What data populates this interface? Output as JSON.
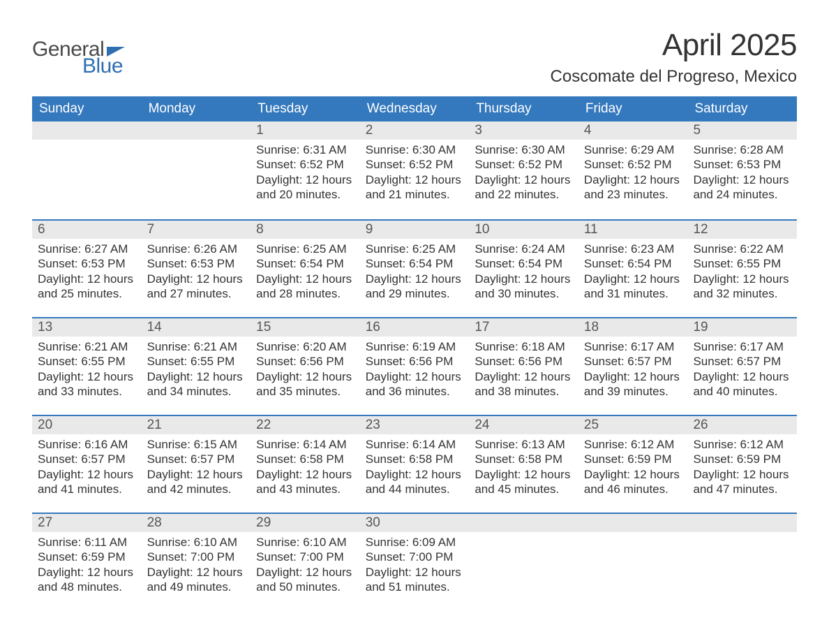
{
  "logo": {
    "word1": "General",
    "word2": "Blue"
  },
  "title": "April 2025",
  "location": "Coscomate del Progreso, Mexico",
  "labels": {
    "sunrise": "Sunrise:",
    "sunset": "Sunset:",
    "daylight": "Daylight:"
  },
  "colors": {
    "header_bg": "#3478bd",
    "header_text": "#ffffff",
    "daynum_bg": "#e9e9e9",
    "body_text": "#333333",
    "logo_gray": "#4a4a4a",
    "logo_blue": "#2f6fb0",
    "page_bg": "#ffffff",
    "week_border": "#3478bd"
  },
  "typography": {
    "title_fontsize": 44,
    "location_fontsize": 24,
    "dayhead_fontsize": 19,
    "daynum_fontsize": 19,
    "body_fontsize": 17,
    "logo_fontsize": 30
  },
  "day_headers": [
    "Sunday",
    "Monday",
    "Tuesday",
    "Wednesday",
    "Thursday",
    "Friday",
    "Saturday"
  ],
  "weeks": [
    [
      {
        "blank": true
      },
      {
        "blank": true
      },
      {
        "day": "1",
        "sunrise": "6:31 AM",
        "sunset": "6:52 PM",
        "daylight": "12 hours and 20 minutes."
      },
      {
        "day": "2",
        "sunrise": "6:30 AM",
        "sunset": "6:52 PM",
        "daylight": "12 hours and 21 minutes."
      },
      {
        "day": "3",
        "sunrise": "6:30 AM",
        "sunset": "6:52 PM",
        "daylight": "12 hours and 22 minutes."
      },
      {
        "day": "4",
        "sunrise": "6:29 AM",
        "sunset": "6:52 PM",
        "daylight": "12 hours and 23 minutes."
      },
      {
        "day": "5",
        "sunrise": "6:28 AM",
        "sunset": "6:53 PM",
        "daylight": "12 hours and 24 minutes."
      }
    ],
    [
      {
        "day": "6",
        "sunrise": "6:27 AM",
        "sunset": "6:53 PM",
        "daylight": "12 hours and 25 minutes."
      },
      {
        "day": "7",
        "sunrise": "6:26 AM",
        "sunset": "6:53 PM",
        "daylight": "12 hours and 27 minutes."
      },
      {
        "day": "8",
        "sunrise": "6:25 AM",
        "sunset": "6:54 PM",
        "daylight": "12 hours and 28 minutes."
      },
      {
        "day": "9",
        "sunrise": "6:25 AM",
        "sunset": "6:54 PM",
        "daylight": "12 hours and 29 minutes."
      },
      {
        "day": "10",
        "sunrise": "6:24 AM",
        "sunset": "6:54 PM",
        "daylight": "12 hours and 30 minutes."
      },
      {
        "day": "11",
        "sunrise": "6:23 AM",
        "sunset": "6:54 PM",
        "daylight": "12 hours and 31 minutes."
      },
      {
        "day": "12",
        "sunrise": "6:22 AM",
        "sunset": "6:55 PM",
        "daylight": "12 hours and 32 minutes."
      }
    ],
    [
      {
        "day": "13",
        "sunrise": "6:21 AM",
        "sunset": "6:55 PM",
        "daylight": "12 hours and 33 minutes."
      },
      {
        "day": "14",
        "sunrise": "6:21 AM",
        "sunset": "6:55 PM",
        "daylight": "12 hours and 34 minutes."
      },
      {
        "day": "15",
        "sunrise": "6:20 AM",
        "sunset": "6:56 PM",
        "daylight": "12 hours and 35 minutes."
      },
      {
        "day": "16",
        "sunrise": "6:19 AM",
        "sunset": "6:56 PM",
        "daylight": "12 hours and 36 minutes."
      },
      {
        "day": "17",
        "sunrise": "6:18 AM",
        "sunset": "6:56 PM",
        "daylight": "12 hours and 38 minutes."
      },
      {
        "day": "18",
        "sunrise": "6:17 AM",
        "sunset": "6:57 PM",
        "daylight": "12 hours and 39 minutes."
      },
      {
        "day": "19",
        "sunrise": "6:17 AM",
        "sunset": "6:57 PM",
        "daylight": "12 hours and 40 minutes."
      }
    ],
    [
      {
        "day": "20",
        "sunrise": "6:16 AM",
        "sunset": "6:57 PM",
        "daylight": "12 hours and 41 minutes."
      },
      {
        "day": "21",
        "sunrise": "6:15 AM",
        "sunset": "6:57 PM",
        "daylight": "12 hours and 42 minutes."
      },
      {
        "day": "22",
        "sunrise": "6:14 AM",
        "sunset": "6:58 PM",
        "daylight": "12 hours and 43 minutes."
      },
      {
        "day": "23",
        "sunrise": "6:14 AM",
        "sunset": "6:58 PM",
        "daylight": "12 hours and 44 minutes."
      },
      {
        "day": "24",
        "sunrise": "6:13 AM",
        "sunset": "6:58 PM",
        "daylight": "12 hours and 45 minutes."
      },
      {
        "day": "25",
        "sunrise": "6:12 AM",
        "sunset": "6:59 PM",
        "daylight": "12 hours and 46 minutes."
      },
      {
        "day": "26",
        "sunrise": "6:12 AM",
        "sunset": "6:59 PM",
        "daylight": "12 hours and 47 minutes."
      }
    ],
    [
      {
        "day": "27",
        "sunrise": "6:11 AM",
        "sunset": "6:59 PM",
        "daylight": "12 hours and 48 minutes."
      },
      {
        "day": "28",
        "sunrise": "6:10 AM",
        "sunset": "7:00 PM",
        "daylight": "12 hours and 49 minutes."
      },
      {
        "day": "29",
        "sunrise": "6:10 AM",
        "sunset": "7:00 PM",
        "daylight": "12 hours and 50 minutes."
      },
      {
        "day": "30",
        "sunrise": "6:09 AM",
        "sunset": "7:00 PM",
        "daylight": "12 hours and 51 minutes."
      },
      {
        "blank": true
      },
      {
        "blank": true
      },
      {
        "blank": true
      }
    ]
  ]
}
